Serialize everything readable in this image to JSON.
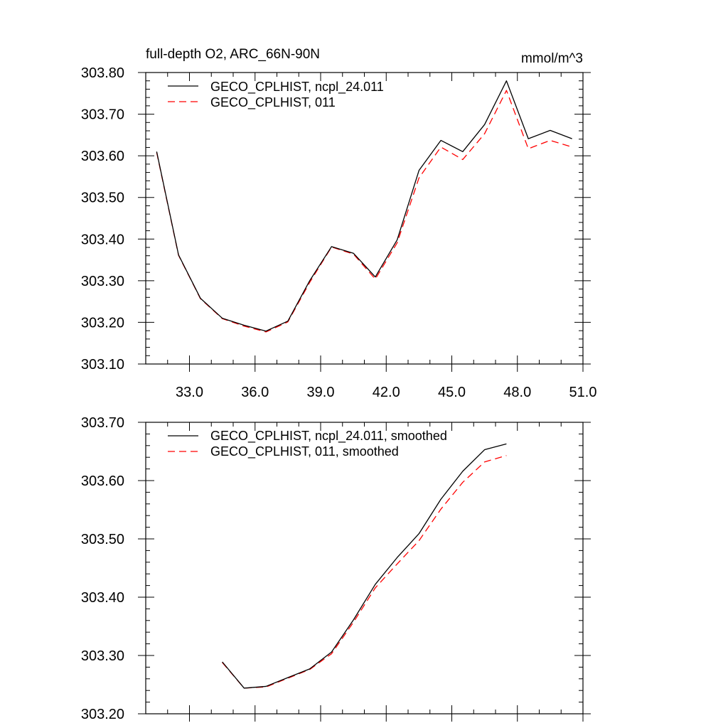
{
  "chart_data": [
    {
      "type": "line",
      "title": "full-depth O2, ARC_66N-90N",
      "units": "mmol/m^3",
      "xlabel": "",
      "ylabel": "",
      "xlim": [
        31.0,
        51.0
      ],
      "ylim": [
        303.1,
        303.8
      ],
      "xticks": [
        33.0,
        36.0,
        39.0,
        42.0,
        45.0,
        48.0,
        51.0
      ],
      "xticklabels": [
        "33.0",
        "36.0",
        "39.0",
        "42.0",
        "45.0",
        "48.0",
        "51.0"
      ],
      "yticks": [
        303.1,
        303.2,
        303.3,
        303.4,
        303.5,
        303.6,
        303.7,
        303.8
      ],
      "yticklabels": [
        "303.10",
        "303.20",
        "303.30",
        "303.40",
        "303.50",
        "303.60",
        "303.70",
        "303.80"
      ],
      "grid": false,
      "legend_position": "top-left",
      "x": [
        31.5,
        32.5,
        33.5,
        34.5,
        35.5,
        36.5,
        37.5,
        38.5,
        39.5,
        40.5,
        41.5,
        42.5,
        43.5,
        44.5,
        45.5,
        46.5,
        47.5,
        48.5,
        49.5,
        50.5
      ],
      "series": [
        {
          "name": "GECO_CPLHIST, ncpl_24.011",
          "color": "#000000",
          "dash": "solid",
          "values": [
            303.61,
            303.362,
            303.258,
            303.21,
            303.193,
            303.179,
            303.203,
            303.3,
            303.382,
            303.366,
            303.309,
            303.398,
            303.565,
            303.637,
            303.61,
            303.675,
            303.78,
            303.641,
            303.661,
            303.641
          ]
        },
        {
          "name": "GECO_CPLHIST, 011",
          "color": "#ff0000",
          "dash": "dashed",
          "values": [
            303.608,
            303.361,
            303.257,
            303.209,
            303.191,
            303.177,
            303.201,
            303.296,
            303.381,
            303.364,
            303.304,
            303.391,
            303.547,
            303.621,
            303.591,
            303.653,
            303.757,
            303.617,
            303.637,
            303.621
          ]
        }
      ]
    },
    {
      "type": "line",
      "title": "",
      "xlabel": "",
      "ylabel": "",
      "xlim": [
        31.0,
        51.0
      ],
      "ylim": [
        303.2,
        303.7
      ],
      "yticks": [
        303.2,
        303.3,
        303.4,
        303.5,
        303.6,
        303.7
      ],
      "yticklabels": [
        "303.20",
        "303.30",
        "303.40",
        "303.50",
        "303.60",
        "303.70"
      ],
      "grid": false,
      "legend_position": "top-left",
      "x": [
        34.5,
        35.5,
        36.5,
        37.5,
        38.5,
        39.5,
        40.5,
        41.5,
        42.5,
        43.5,
        44.5,
        45.5,
        46.5,
        47.5
      ],
      "series": [
        {
          "name": "GECO_CPLHIST, ncpl_24.011, smoothed",
          "color": "#000000",
          "dash": "solid",
          "values": [
            303.289,
            303.244,
            303.247,
            303.262,
            303.277,
            303.306,
            303.361,
            303.422,
            303.468,
            303.509,
            303.568,
            303.616,
            303.653,
            303.663
          ]
        },
        {
          "name": "GECO_CPLHIST, 011, smoothed",
          "color": "#ff0000",
          "dash": "dashed",
          "values": [
            303.288,
            303.244,
            303.246,
            303.261,
            303.276,
            303.303,
            303.357,
            303.416,
            303.457,
            303.497,
            303.551,
            303.597,
            303.632,
            303.643
          ]
        }
      ]
    }
  ]
}
